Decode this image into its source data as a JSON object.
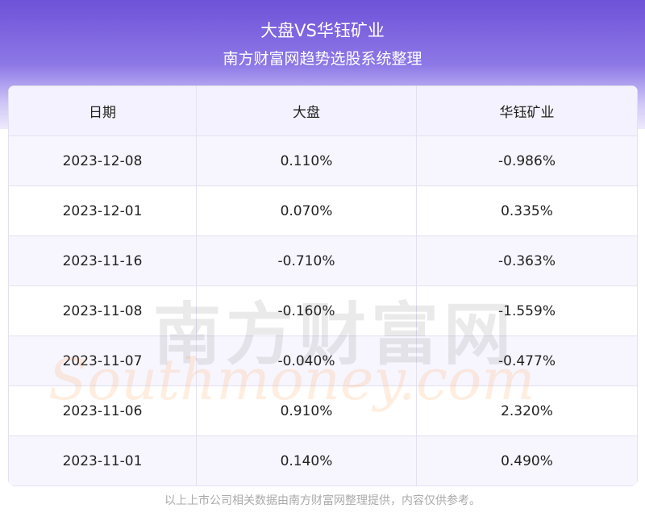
{
  "header": {
    "title": "大盘VS华钰矿业",
    "subtitle": "南方财富网趋势选股系统整理"
  },
  "table": {
    "columns": [
      "日期",
      "大盘",
      "华钰矿业"
    ],
    "rows": [
      [
        "2023-12-08",
        "0.110%",
        "-0.986%"
      ],
      [
        "2023-12-01",
        "0.070%",
        "0.335%"
      ],
      [
        "2023-11-16",
        "-0.710%",
        "-0.363%"
      ],
      [
        "2023-11-08",
        "-0.160%",
        "-1.559%"
      ],
      [
        "2023-11-07",
        "-0.040%",
        "-0.477%"
      ],
      [
        "2023-11-06",
        "0.910%",
        "2.320%"
      ],
      [
        "2023-11-01",
        "0.140%",
        "0.490%"
      ]
    ]
  },
  "watermark": {
    "cn": "南方财富网",
    "en": "Southmoney.com"
  },
  "footer": "以上上市公司相关数据由南方财富网整理提供，内容仅供参考。"
}
